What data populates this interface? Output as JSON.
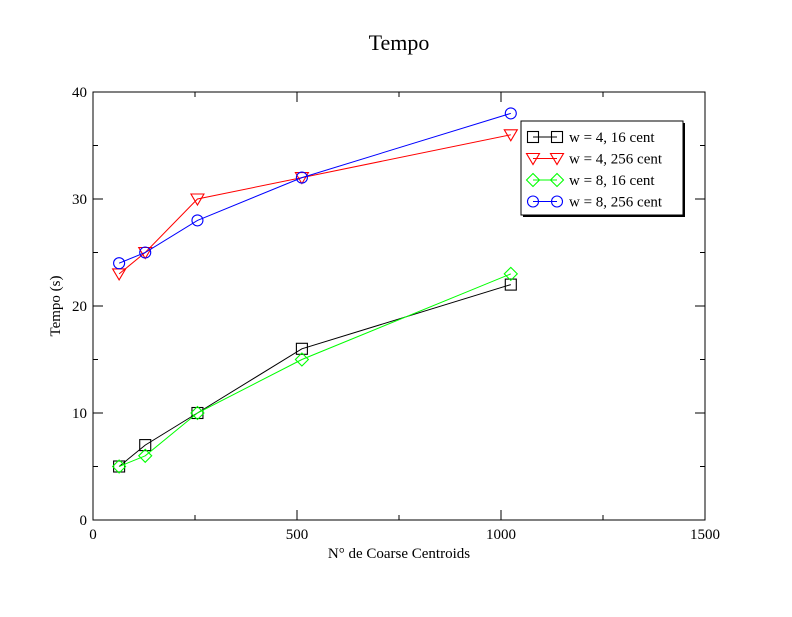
{
  "chart_data": {
    "type": "line",
    "title": "Tempo",
    "xlabel": "N° de Coarse Centroids",
    "ylabel": "Tempo (s)",
    "xlim": [
      0,
      1500
    ],
    "ylim": [
      0,
      40
    ],
    "x_ticks": [
      0,
      500,
      1000,
      1500
    ],
    "y_ticks": [
      0,
      10,
      20,
      30,
      40
    ],
    "x_tick_labels": [
      "0",
      "500",
      "1000",
      "1500"
    ],
    "y_tick_labels": [
      "0",
      "10",
      "20",
      "30",
      "40"
    ],
    "grid": false,
    "legend_position": "top-right",
    "series": [
      {
        "name": "w = 4, 16 cent",
        "color": "#000000",
        "marker": "square",
        "x": [
          64,
          128,
          256,
          512,
          1024
        ],
        "y": [
          5,
          7,
          10,
          16,
          22
        ]
      },
      {
        "name": "w = 4, 256 cent",
        "color": "#ff0000",
        "marker": "triangle-down",
        "x": [
          64,
          128,
          256,
          512,
          1024
        ],
        "y": [
          23,
          25,
          30,
          32,
          36
        ]
      },
      {
        "name": "w = 8, 16 cent",
        "color": "#00ff00",
        "marker": "diamond",
        "x": [
          64,
          128,
          256,
          512,
          1024
        ],
        "y": [
          5,
          6,
          10,
          15,
          23
        ]
      },
      {
        "name": "w = 8, 256 cent",
        "color": "#0000ff",
        "marker": "circle",
        "x": [
          64,
          128,
          256,
          512,
          1024
        ],
        "y": [
          24,
          25,
          28,
          32,
          38
        ]
      }
    ]
  }
}
